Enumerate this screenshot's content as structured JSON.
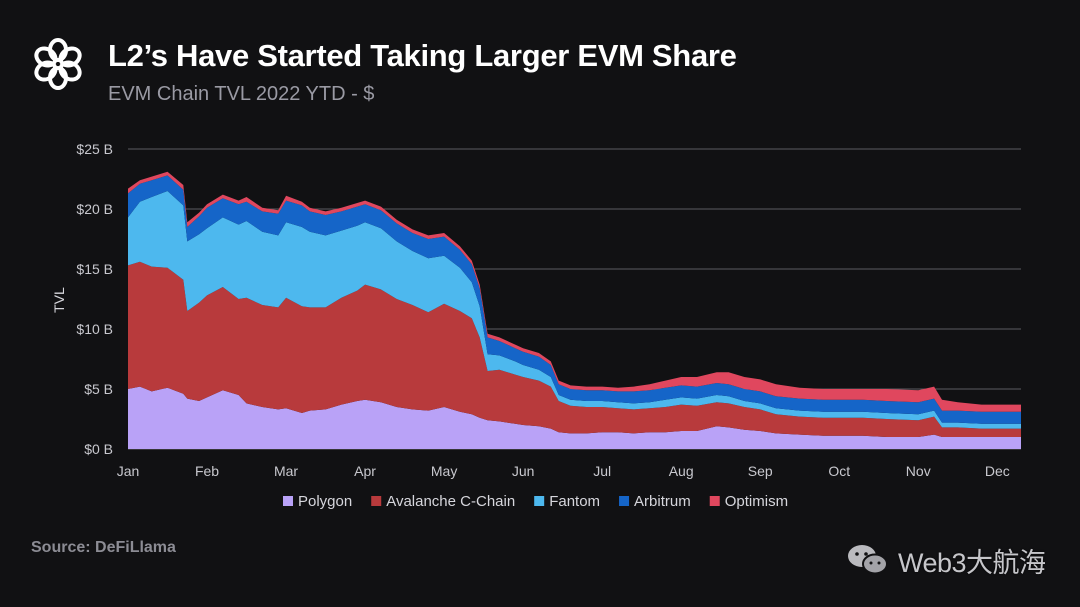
{
  "header": {
    "title": "L2’s Have Started Taking Larger EVM Share",
    "subtitle": "EVM Chain TVL 2022 YTD - $"
  },
  "footer": {
    "source": "Source: DeFiLlama",
    "watermark": "Web3大航海"
  },
  "icons": {
    "logo": "flower-logo-icon",
    "watermark": "wechat-icon"
  },
  "colors": {
    "background": "#111113",
    "grid": "#5a5a60",
    "Polygon": "#b9a2f7",
    "Avalanche C-Chain": "#b83a3c",
    "Fantom": "#4db8ee",
    "Arbitrum": "#1565c8",
    "Optimism": "#e0475e"
  },
  "chart_data": {
    "type": "area",
    "stacked": true,
    "title": "L2’s Have Started Taking Larger EVM Share",
    "subtitle": "EVM Chain TVL 2022 YTD - $",
    "xlabel": "",
    "ylabel": "TVL",
    "ylim": [
      0,
      25
    ],
    "y_unit": "$ B",
    "yticks": [
      0,
      5,
      10,
      15,
      20,
      25
    ],
    "ytick_labels": [
      "$0 B",
      "$5 B",
      "$10 B",
      "$15 B",
      "$20 B",
      "$25 B"
    ],
    "x_domain": [
      0,
      11.3
    ],
    "xticks": [
      0,
      1,
      2,
      3,
      4,
      5,
      6,
      7,
      8,
      9,
      10,
      11
    ],
    "xtick_labels": [
      "Jan",
      "Feb",
      "Mar",
      "Apr",
      "May",
      "Jun",
      "Jul",
      "Aug",
      "Sep",
      "Oct",
      "Nov",
      "Dec"
    ],
    "grid": true,
    "legend_position": "bottom-center",
    "x": [
      0,
      0.15,
      0.3,
      0.5,
      0.7,
      0.75,
      0.9,
      1.0,
      1.2,
      1.4,
      1.5,
      1.7,
      1.9,
      2.0,
      2.2,
      2.3,
      2.5,
      2.7,
      2.9,
      3.0,
      3.2,
      3.4,
      3.6,
      3.8,
      4.0,
      4.2,
      4.35,
      4.45,
      4.55,
      4.7,
      4.9,
      5.0,
      5.2,
      5.35,
      5.45,
      5.6,
      5.8,
      6.0,
      6.2,
      6.4,
      6.6,
      6.8,
      7.0,
      7.2,
      7.45,
      7.6,
      7.8,
      8.0,
      8.2,
      8.5,
      8.8,
      9.0,
      9.3,
      9.6,
      10.0,
      10.2,
      10.3,
      10.5,
      10.8,
      11.0,
      11.3
    ],
    "series": [
      {
        "name": "Polygon",
        "values": [
          5.0,
          5.2,
          4.8,
          5.1,
          4.6,
          4.2,
          4.0,
          4.3,
          4.9,
          4.5,
          3.8,
          3.5,
          3.3,
          3.4,
          3.0,
          3.2,
          3.3,
          3.7,
          4.0,
          4.1,
          3.9,
          3.5,
          3.3,
          3.2,
          3.5,
          3.1,
          2.9,
          2.6,
          2.4,
          2.3,
          2.1,
          2.0,
          1.9,
          1.7,
          1.4,
          1.3,
          1.3,
          1.4,
          1.4,
          1.3,
          1.4,
          1.4,
          1.5,
          1.5,
          1.9,
          1.8,
          1.6,
          1.5,
          1.3,
          1.2,
          1.1,
          1.1,
          1.1,
          1.0,
          1.0,
          1.2,
          1.0,
          1.0,
          1.0,
          1.0,
          1.0
        ]
      },
      {
        "name": "Avalanche C-Chain",
        "values": [
          10.3,
          10.4,
          10.4,
          10.0,
          9.5,
          7.3,
          8.2,
          8.5,
          8.6,
          8.0,
          8.8,
          8.5,
          8.5,
          9.2,
          8.9,
          8.6,
          8.5,
          8.9,
          9.2,
          9.6,
          9.4,
          9.0,
          8.7,
          8.2,
          8.6,
          8.4,
          8.0,
          6.7,
          4.1,
          4.3,
          4.1,
          4.0,
          3.8,
          3.5,
          2.6,
          2.3,
          2.2,
          2.1,
          2.0,
          2.0,
          2.0,
          2.1,
          2.2,
          2.1,
          2.0,
          2.0,
          1.9,
          1.8,
          1.6,
          1.5,
          1.5,
          1.5,
          1.5,
          1.5,
          1.4,
          1.5,
          0.8,
          0.8,
          0.7,
          0.7,
          0.7
        ]
      },
      {
        "name": "Fantom",
        "values": [
          4.0,
          5.0,
          5.8,
          6.4,
          6.2,
          5.8,
          5.7,
          5.6,
          5.8,
          6.2,
          6.4,
          6.1,
          6.0,
          6.3,
          6.6,
          6.3,
          6.0,
          5.6,
          5.4,
          5.2,
          5.1,
          4.8,
          4.5,
          4.5,
          4.0,
          3.6,
          3.0,
          2.6,
          1.4,
          1.2,
          1.1,
          1.0,
          0.9,
          0.8,
          0.5,
          0.5,
          0.5,
          0.5,
          0.5,
          0.5,
          0.5,
          0.6,
          0.6,
          0.6,
          0.6,
          0.6,
          0.5,
          0.5,
          0.5,
          0.5,
          0.5,
          0.5,
          0.5,
          0.5,
          0.5,
          0.5,
          0.4,
          0.4,
          0.4,
          0.4,
          0.4
        ]
      },
      {
        "name": "Arbitrum",
        "values": [
          2.0,
          1.5,
          1.4,
          1.3,
          1.3,
          1.2,
          1.5,
          1.7,
          1.6,
          1.7,
          1.6,
          1.7,
          1.8,
          1.8,
          1.8,
          1.7,
          1.7,
          1.6,
          1.6,
          1.5,
          1.5,
          1.5,
          1.5,
          1.6,
          1.6,
          1.5,
          1.5,
          1.5,
          1.4,
          1.2,
          1.1,
          1.1,
          1.1,
          1.0,
          0.9,
          0.9,
          0.9,
          0.9,
          0.9,
          1.0,
          1.0,
          1.0,
          1.0,
          1.0,
          1.0,
          1.0,
          1.0,
          1.0,
          1.0,
          1.0,
          1.0,
          1.0,
          1.0,
          1.0,
          1.0,
          1.0,
          1.0,
          1.0,
          1.0,
          1.0,
          1.0
        ]
      },
      {
        "name": "Optimism",
        "values": [
          0.4,
          0.3,
          0.3,
          0.3,
          0.4,
          0.4,
          0.3,
          0.3,
          0.3,
          0.3,
          0.4,
          0.3,
          0.3,
          0.4,
          0.3,
          0.3,
          0.3,
          0.3,
          0.3,
          0.3,
          0.3,
          0.3,
          0.3,
          0.3,
          0.3,
          0.3,
          0.3,
          0.3,
          0.3,
          0.3,
          0.3,
          0.3,
          0.3,
          0.3,
          0.3,
          0.3,
          0.3,
          0.3,
          0.3,
          0.4,
          0.5,
          0.6,
          0.7,
          0.8,
          0.9,
          1.0,
          1.0,
          1.0,
          1.0,
          0.9,
          0.9,
          0.9,
          0.9,
          1.0,
          1.0,
          1.0,
          0.9,
          0.7,
          0.6,
          0.6,
          0.6
        ]
      }
    ]
  }
}
